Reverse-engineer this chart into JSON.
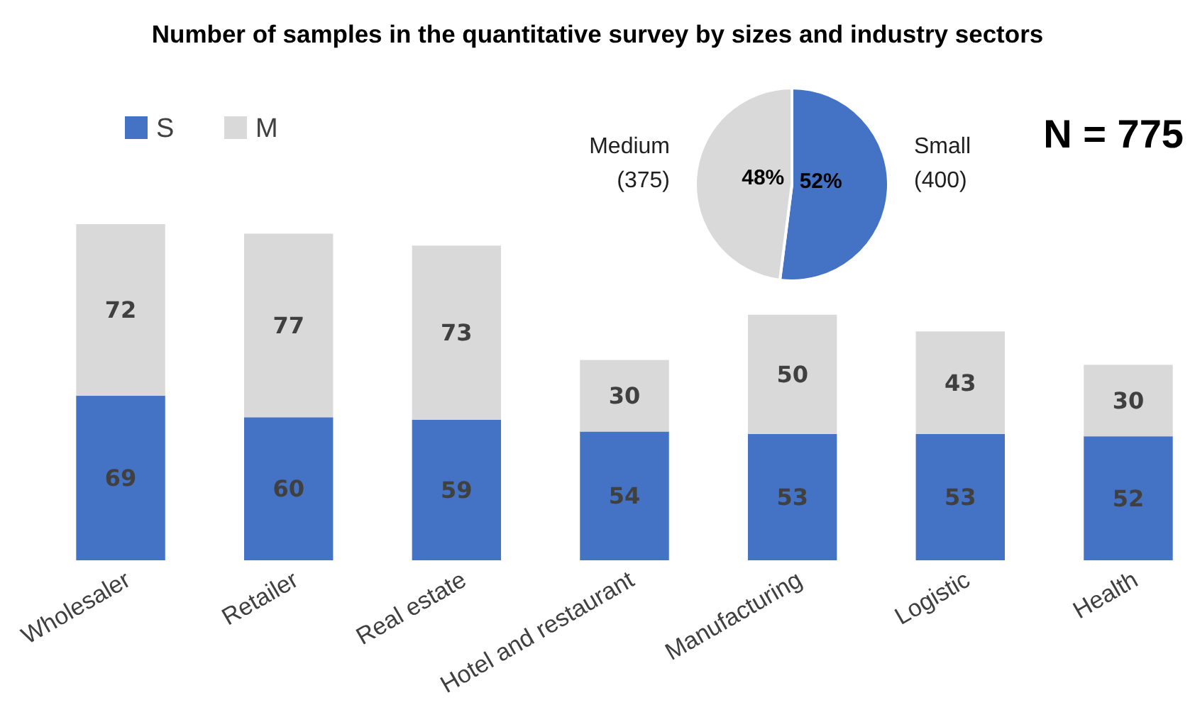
{
  "chart_data": [
    {
      "type": "bar",
      "title": "Number of samples in the quantitative survey by sizes and industry sectors",
      "categories": [
        "Wholesaler",
        "Retailer",
        "Real estate",
        "Hotel and restaurant",
        "Manufacturing",
        "Logistic",
        "Health"
      ],
      "stacked": true,
      "data_labels": true,
      "legend": "top left",
      "series": [
        {
          "name": "S",
          "color": "#4472c4",
          "values": [
            69,
            60,
            59,
            54,
            53,
            53,
            52
          ]
        },
        {
          "name": "M",
          "color": "#d9d9d9",
          "values": [
            72,
            77,
            73,
            30,
            50,
            43,
            30
          ]
        }
      ]
    },
    {
      "type": "pie",
      "categories": [
        "Small\n(400)",
        "Medium\n(375)"
      ],
      "values": [
        52,
        48
      ],
      "colors": [
        "#4472c4",
        "#d9d9d9"
      ],
      "value_labels": [
        "52%",
        "48%"
      ],
      "annotations": [
        "N = 775"
      ]
    }
  ]
}
